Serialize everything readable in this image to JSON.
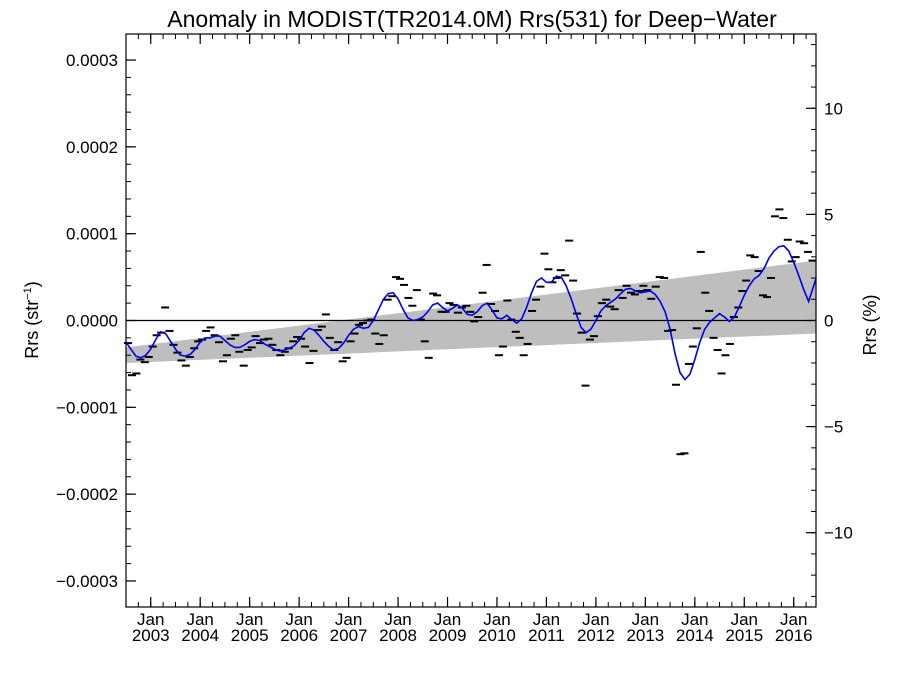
{
  "chart_data": {
    "type": "line",
    "title": "Anomaly in MODIST(TR2014.0M) Rrs(531) for Deep−Water",
    "ylabel_left": "Rrs (str",
    "ylabel_left_sup": "−1",
    "ylabel_left_end": ")",
    "ylabel_right": "Rrs (%)",
    "x_range": [
      2002.5,
      2016.45
    ],
    "y_range_left": [
      -0.00033,
      0.00033
    ],
    "y_range_right": [
      -13.5,
      13.5
    ],
    "y_ticks_left": [
      {
        "v": 0.0003,
        "label": "0.0003"
      },
      {
        "v": 0.0002,
        "label": "0.0002"
      },
      {
        "v": 0.0001,
        "label": "0.0001"
      },
      {
        "v": 0.0,
        "label": "0.0000"
      },
      {
        "v": -0.0001,
        "label": "−0.0001"
      },
      {
        "v": -0.0002,
        "label": "−0.0002"
      },
      {
        "v": -0.0003,
        "label": "−0.0003"
      }
    ],
    "y_ticks_right": [
      {
        "v": 10,
        "label": "10"
      },
      {
        "v": 5,
        "label": "5"
      },
      {
        "v": 0,
        "label": "0"
      },
      {
        "v": -5,
        "label": "−5"
      },
      {
        "v": -10,
        "label": "−10"
      }
    ],
    "x_ticks": [
      {
        "v": 2003.0,
        "month": "Jan",
        "year": "2003"
      },
      {
        "v": 2004.0,
        "month": "Jan",
        "year": "2004"
      },
      {
        "v": 2005.0,
        "month": "Jan",
        "year": "2005"
      },
      {
        "v": 2006.0,
        "month": "Jan",
        "year": "2006"
      },
      {
        "v": 2007.0,
        "month": "Jan",
        "year": "2007"
      },
      {
        "v": 2008.0,
        "month": "Jan",
        "year": "2008"
      },
      {
        "v": 2009.0,
        "month": "Jan",
        "year": "2009"
      },
      {
        "v": 2010.0,
        "month": "Jan",
        "year": "2010"
      },
      {
        "v": 2011.0,
        "month": "Jan",
        "year": "2011"
      },
      {
        "v": 2012.0,
        "month": "Jan",
        "year": "2012"
      },
      {
        "v": 2013.0,
        "month": "Jan",
        "year": "2013"
      },
      {
        "v": 2014.0,
        "month": "Jan",
        "year": "2014"
      },
      {
        "v": 2015.0,
        "month": "Jan",
        "year": "2015"
      },
      {
        "v": 2016.0,
        "month": "Jan",
        "year": "2016"
      }
    ],
    "zero_line": 0.0,
    "trend_band": {
      "start": {
        "x": 2002.5,
        "lower": -4.9e-05,
        "upper": -3.1e-05
      },
      "end": {
        "x": 2016.45,
        "lower": -1.5e-05,
        "upper": 6.9e-05
      }
    },
    "smoothed_line": [
      [
        2002.5,
        -2.5e-05
      ],
      [
        2002.6,
        -3.3e-05
      ],
      [
        2002.7,
        -4.1e-05
      ],
      [
        2002.8,
        -4.3e-05
      ],
      [
        2002.9,
        -4e-05
      ],
      [
        2003.0,
        -3.3e-05
      ],
      [
        2003.1,
        -2.2e-05
      ],
      [
        2003.2,
        -1.3e-05
      ],
      [
        2003.3,
        -1.5e-05
      ],
      [
        2003.4,
        -2.4e-05
      ],
      [
        2003.5,
        -3.3e-05
      ],
      [
        2003.6,
        -4e-05
      ],
      [
        2003.7,
        -4.1e-05
      ],
      [
        2003.8,
        -3.9e-05
      ],
      [
        2003.9,
        -3.3e-05
      ],
      [
        2004.0,
        -2.5e-05
      ],
      [
        2004.1,
        -2e-05
      ],
      [
        2004.2,
        -2e-05
      ],
      [
        2004.3,
        -1.8e-05
      ],
      [
        2004.4,
        -1.8e-05
      ],
      [
        2004.5,
        -2.3e-05
      ],
      [
        2004.6,
        -2.8e-05
      ],
      [
        2004.7,
        -3.1e-05
      ],
      [
        2004.8,
        -3.1e-05
      ],
      [
        2004.9,
        -2.8e-05
      ],
      [
        2005.0,
        -2.4e-05
      ],
      [
        2005.1,
        -2.2e-05
      ],
      [
        2005.2,
        -2.3e-05
      ],
      [
        2005.3,
        -2.7e-05
      ],
      [
        2005.4,
        -3e-05
      ],
      [
        2005.5,
        -3.3e-05
      ],
      [
        2005.6,
        -3.5e-05
      ],
      [
        2005.7,
        -3.4e-05
      ],
      [
        2005.8,
        -3.2e-05
      ],
      [
        2005.9,
        -2.9e-05
      ],
      [
        2006.0,
        -2.3e-05
      ],
      [
        2006.1,
        -1.4e-05
      ],
      [
        2006.2,
        -9e-06
      ],
      [
        2006.3,
        -1.1e-05
      ],
      [
        2006.4,
        -1.7e-05
      ],
      [
        2006.5,
        -2.4e-05
      ],
      [
        2006.6,
        -3e-05
      ],
      [
        2006.7,
        -3.4e-05
      ],
      [
        2006.8,
        -3.2e-05
      ],
      [
        2006.9,
        -2.6e-05
      ],
      [
        2007.0,
        -1.7e-05
      ],
      [
        2007.1,
        -1e-05
      ],
      [
        2007.2,
        -7e-06
      ],
      [
        2007.3,
        -9e-06
      ],
      [
        2007.4,
        -8e-06
      ],
      [
        2007.5,
        0.0
      ],
      [
        2007.6,
        1.2e-05
      ],
      [
        2007.7,
        2.4e-05
      ],
      [
        2007.8,
        3.1e-05
      ],
      [
        2007.9,
        3.2e-05
      ],
      [
        2008.0,
        2.5e-05
      ],
      [
        2008.1,
        1.3e-05
      ],
      [
        2008.2,
        3e-06
      ],
      [
        2008.3,
        0.0
      ],
      [
        2008.4,
        1e-06
      ],
      [
        2008.5,
        4e-06
      ],
      [
        2008.6,
        1e-05
      ],
      [
        2008.7,
        1.8e-05
      ],
      [
        2008.8,
        2e-05
      ],
      [
        2008.9,
        1.5e-05
      ],
      [
        2009.0,
        1.1e-05
      ],
      [
        2009.1,
        1.4e-05
      ],
      [
        2009.2,
        1.8e-05
      ],
      [
        2009.3,
        1.4e-05
      ],
      [
        2009.4,
        7e-06
      ],
      [
        2009.5,
        6e-06
      ],
      [
        2009.6,
        1e-05
      ],
      [
        2009.7,
        1.7e-05
      ],
      [
        2009.8,
        2e-05
      ],
      [
        2009.9,
        1.2e-05
      ],
      [
        2010.0,
        3e-06
      ],
      [
        2010.1,
        2e-06
      ],
      [
        2010.2,
        6e-06
      ],
      [
        2010.3,
        1e-06
      ],
      [
        2010.4,
        -3e-06
      ],
      [
        2010.5,
        2e-06
      ],
      [
        2010.6,
        1.5e-05
      ],
      [
        2010.7,
        3.2e-05
      ],
      [
        2010.8,
        4.5e-05
      ],
      [
        2010.9,
        4.9e-05
      ],
      [
        2011.0,
        4.4e-05
      ],
      [
        2011.1,
        4.4e-05
      ],
      [
        2011.2,
        5.1e-05
      ],
      [
        2011.3,
        5e-05
      ],
      [
        2011.4,
        4e-05
      ],
      [
        2011.5,
        2.5e-05
      ],
      [
        2011.6,
        8e-06
      ],
      [
        2011.7,
        -8e-06
      ],
      [
        2011.8,
        -1.4e-05
      ],
      [
        2011.9,
        -1e-05
      ],
      [
        2012.0,
        0.0
      ],
      [
        2012.1,
        1.1e-05
      ],
      [
        2012.2,
        1.7e-05
      ],
      [
        2012.3,
        2.1e-05
      ],
      [
        2012.4,
        2.5e-05
      ],
      [
        2012.5,
        3.1e-05
      ],
      [
        2012.6,
        3.6e-05
      ],
      [
        2012.7,
        3.7e-05
      ],
      [
        2012.8,
        3.4e-05
      ],
      [
        2012.9,
        3.2e-05
      ],
      [
        2013.0,
        3.3e-05
      ],
      [
        2013.1,
        3.4e-05
      ],
      [
        2013.2,
        3e-05
      ],
      [
        2013.3,
        2.2e-05
      ],
      [
        2013.4,
        1e-05
      ],
      [
        2013.5,
        -1e-05
      ],
      [
        2013.6,
        -3.8e-05
      ],
      [
        2013.7,
        -6e-05
      ],
      [
        2013.8,
        -6.8e-05
      ],
      [
        2013.9,
        -6.2e-05
      ],
      [
        2014.0,
        -4.5e-05
      ],
      [
        2014.1,
        -2.5e-05
      ],
      [
        2014.2,
        -1e-05
      ],
      [
        2014.3,
        -2e-06
      ],
      [
        2014.4,
        3e-06
      ],
      [
        2014.5,
        8e-06
      ],
      [
        2014.6,
        4e-06
      ],
      [
        2014.7,
        -1e-06
      ],
      [
        2014.8,
        4e-06
      ],
      [
        2014.9,
        1.6e-05
      ],
      [
        2015.0,
        2.9e-05
      ],
      [
        2015.1,
        4e-05
      ],
      [
        2015.2,
        4.8e-05
      ],
      [
        2015.3,
        5.2e-05
      ],
      [
        2015.4,
        6e-05
      ],
      [
        2015.5,
        7.2e-05
      ],
      [
        2015.6,
        8e-05
      ],
      [
        2015.7,
        8.5e-05
      ],
      [
        2015.8,
        8.6e-05
      ],
      [
        2015.9,
        8e-05
      ],
      [
        2016.0,
        6.7e-05
      ],
      [
        2016.1,
        5.2e-05
      ],
      [
        2016.2,
        3.6e-05
      ],
      [
        2016.3,
        2.2e-05
      ],
      [
        2016.45,
        4.8e-05
      ]
    ],
    "monthly_points": [
      [
        2002.54,
        -2.6e-05
      ],
      [
        2002.62,
        -6.3e-05
      ],
      [
        2002.71,
        -6.1e-05
      ],
      [
        2002.79,
        -4.5e-05
      ],
      [
        2002.88,
        -4.8e-05
      ],
      [
        2002.96,
        -4.2e-05
      ],
      [
        2003.04,
        -3e-05
      ],
      [
        2003.12,
        -1.7e-05
      ],
      [
        2003.21,
        -1.4e-05
      ],
      [
        2003.29,
        1.5e-05
      ],
      [
        2003.38,
        -1.2e-05
      ],
      [
        2003.46,
        -2.8e-05
      ],
      [
        2003.54,
        -3.7e-05
      ],
      [
        2003.62,
        -4.6e-05
      ],
      [
        2003.71,
        -5.2e-05
      ],
      [
        2003.79,
        -4.2e-05
      ],
      [
        2003.88,
        -3.2e-05
      ],
      [
        2003.96,
        -2.4e-05
      ],
      [
        2004.04,
        -2.2e-05
      ],
      [
        2004.12,
        -1.2e-05
      ],
      [
        2004.21,
        -8e-06
      ],
      [
        2004.29,
        -1.7e-05
      ],
      [
        2004.38,
        -2.5e-05
      ],
      [
        2004.46,
        -4.7e-05
      ],
      [
        2004.54,
        -4e-05
      ],
      [
        2004.62,
        -2.1e-05
      ],
      [
        2004.71,
        -1.7e-05
      ],
      [
        2004.79,
        -3.6e-05
      ],
      [
        2004.88,
        -5.2e-05
      ],
      [
        2004.96,
        -3.4e-05
      ],
      [
        2005.04,
        -3.1e-05
      ],
      [
        2005.12,
        -1.8e-05
      ],
      [
        2005.21,
        -2.6e-05
      ],
      [
        2005.29,
        -2.2e-05
      ],
      [
        2005.38,
        -2.1e-05
      ],
      [
        2005.46,
        -2.8e-05
      ],
      [
        2005.54,
        -3.4e-05
      ],
      [
        2005.62,
        -4e-05
      ],
      [
        2005.71,
        -3.6e-05
      ],
      [
        2005.79,
        -3.2e-05
      ],
      [
        2005.88,
        -2.4e-05
      ],
      [
        2005.96,
        -1.9e-05
      ],
      [
        2006.04,
        -2.1e-05
      ],
      [
        2006.12,
        -3e-05
      ],
      [
        2006.21,
        -4.9e-05
      ],
      [
        2006.29,
        -3.5e-05
      ],
      [
        2006.38,
        -1.1e-05
      ],
      [
        2006.46,
        -7e-06
      ],
      [
        2006.54,
        7e-06
      ],
      [
        2006.62,
        -2e-05
      ],
      [
        2006.71,
        -3.4e-05
      ],
      [
        2006.79,
        -2.5e-05
      ],
      [
        2006.88,
        -4.7e-05
      ],
      [
        2006.96,
        -4.3e-05
      ],
      [
        2007.04,
        -2.4e-05
      ],
      [
        2007.12,
        -1.5e-05
      ],
      [
        2007.21,
        -5e-06
      ],
      [
        2007.29,
        -3e-06
      ],
      [
        2007.38,
        0.0
      ],
      [
        2007.46,
        1e-06
      ],
      [
        2007.54,
        -1.5e-05
      ],
      [
        2007.62,
        -2.7e-05
      ],
      [
        2007.71,
        -1.7e-05
      ],
      [
        2007.79,
        2.4e-05
      ],
      [
        2007.88,
        2.8e-05
      ],
      [
        2007.96,
        5e-05
      ],
      [
        2008.04,
        4.8e-05
      ],
      [
        2008.12,
        4.1e-05
      ],
      [
        2008.21,
        2.6e-05
      ],
      [
        2008.29,
        1.7e-05
      ],
      [
        2008.38,
        3.5e-05
      ],
      [
        2008.46,
        1e-06
      ],
      [
        2008.54,
        -2.4e-05
      ],
      [
        2008.62,
        -4.3e-05
      ],
      [
        2008.71,
        3.1e-05
      ],
      [
        2008.79,
        2.9e-05
      ],
      [
        2008.88,
        1e-05
      ],
      [
        2008.96,
        1e-05
      ],
      [
        2009.04,
        2e-05
      ],
      [
        2009.12,
        1.8e-05
      ],
      [
        2009.21,
        9e-06
      ],
      [
        2009.29,
        1.5e-05
      ],
      [
        2009.38,
        1.7e-05
      ],
      [
        2009.46,
        1e-05
      ],
      [
        2009.54,
        -1e-06
      ],
      [
        2009.62,
        4e-06
      ],
      [
        2009.71,
        3.2e-05
      ],
      [
        2009.79,
        6.4e-05
      ],
      [
        2009.88,
        1.9e-05
      ],
      [
        2009.96,
        1.1e-05
      ],
      [
        2010.04,
        -4e-05
      ],
      [
        2010.12,
        -3e-05
      ],
      [
        2010.21,
        2.3e-05
      ],
      [
        2010.29,
        1e-06
      ],
      [
        2010.38,
        -1.3e-05
      ],
      [
        2010.46,
        -2e-05
      ],
      [
        2010.54,
        -4e-05
      ],
      [
        2010.62,
        -2.7e-05
      ],
      [
        2010.71,
        1.1e-05
      ],
      [
        2010.79,
        2.4e-05
      ],
      [
        2010.88,
        3.9e-05
      ],
      [
        2010.96,
        7.7e-05
      ],
      [
        2011.04,
        5.9e-05
      ],
      [
        2011.12,
        4.4e-05
      ],
      [
        2011.21,
        4.9e-05
      ],
      [
        2011.29,
        5.8e-05
      ],
      [
        2011.38,
        5.2e-05
      ],
      [
        2011.46,
        9.2e-05
      ],
      [
        2011.54,
        4.6e-05
      ],
      [
        2011.62,
        8e-06
      ],
      [
        2011.71,
        -1.4e-05
      ],
      [
        2011.79,
        -7.5e-05
      ],
      [
        2011.88,
        -2.2e-05
      ],
      [
        2011.96,
        -1.8e-05
      ],
      [
        2012.04,
        5e-06
      ],
      [
        2012.12,
        2e-05
      ],
      [
        2012.21,
        2.4e-05
      ],
      [
        2012.29,
        1.6e-05
      ],
      [
        2012.38,
        1.3e-05
      ],
      [
        2012.46,
        3.5e-05
      ],
      [
        2012.54,
        2.6e-05
      ],
      [
        2012.62,
        4e-05
      ],
      [
        2012.71,
        3.2e-05
      ],
      [
        2012.79,
        3e-05
      ],
      [
        2012.88,
        3.4e-05
      ],
      [
        2012.96,
        4e-05
      ],
      [
        2013.04,
        3.5e-05
      ],
      [
        2013.12,
        2.5e-05
      ],
      [
        2013.21,
        3.9e-05
      ],
      [
        2013.29,
        5e-05
      ],
      [
        2013.38,
        4.9e-05
      ],
      [
        2013.46,
        -1.2e-05
      ],
      [
        2013.54,
        -1.1e-05
      ],
      [
        2013.62,
        -7.4e-05
      ],
      [
        2013.71,
        -0.000154
      ],
      [
        2013.79,
        -0.000153
      ],
      [
        2013.88,
        -5e-05
      ],
      [
        2013.96,
        -3e-05
      ],
      [
        2014.04,
        -9e-06
      ],
      [
        2014.12,
        7.9e-05
      ],
      [
        2014.21,
        3.2e-05
      ],
      [
        2014.29,
        1.1e-05
      ],
      [
        2014.38,
        -2e-05
      ],
      [
        2014.46,
        -3.4e-05
      ],
      [
        2014.54,
        -6.1e-05
      ],
      [
        2014.62,
        -4e-05
      ],
      [
        2014.71,
        -2.7e-05
      ],
      [
        2014.79,
        4e-06
      ],
      [
        2014.88,
        1.5e-05
      ],
      [
        2014.96,
        3.4e-05
      ],
      [
        2015.04,
        4.6e-05
      ],
      [
        2015.12,
        7.5e-05
      ],
      [
        2015.21,
        7.3e-05
      ],
      [
        2015.29,
        5.7e-05
      ],
      [
        2015.38,
        2.9e-05
      ],
      [
        2015.46,
        2.7e-05
      ],
      [
        2015.54,
        4.9e-05
      ],
      [
        2015.62,
        0.00012
      ],
      [
        2015.71,
        0.000128
      ],
      [
        2015.79,
        0.000118
      ],
      [
        2015.88,
        9.3e-05
      ],
      [
        2015.96,
        6.8e-05
      ],
      [
        2016.04,
        7.3e-05
      ],
      [
        2016.12,
        9.1e-05
      ],
      [
        2016.21,
        8.9e-05
      ],
      [
        2016.29,
        7.9e-05
      ],
      [
        2016.38,
        6.9e-05
      ]
    ],
    "colors": {
      "smoothed_line": "#0000ee",
      "trend_band": "#bebebe",
      "points": "#000000",
      "axes": "#000000"
    }
  }
}
